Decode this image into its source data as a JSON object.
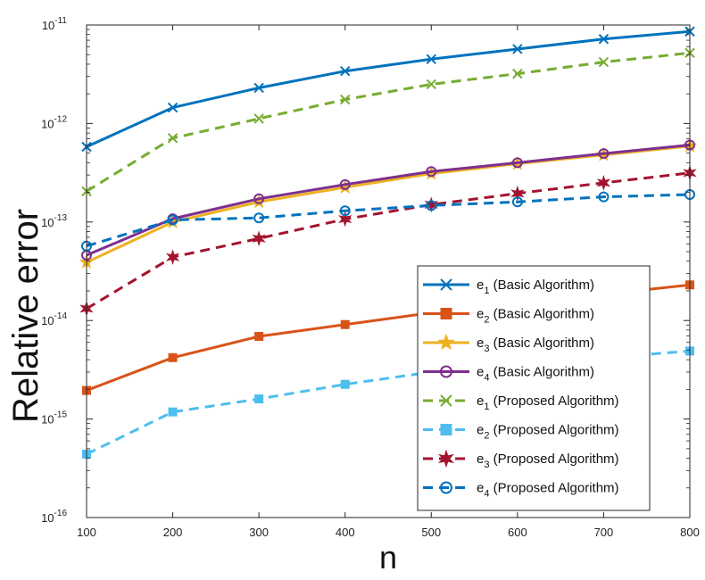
{
  "chart_data": {
    "type": "line",
    "xlabel": "n",
    "ylabel": "Relative error",
    "xlim": [
      100,
      800
    ],
    "ylim": [
      1e-16,
      1e-11
    ],
    "yscale": "log",
    "x": [
      100,
      200,
      300,
      400,
      500,
      600,
      700,
      800
    ],
    "x_ticks": [
      "100",
      "200",
      "300",
      "400",
      "500",
      "600",
      "700",
      "800"
    ],
    "y_ticks": [
      {
        "value": 1e-11,
        "base": "10",
        "exp": "-11"
      },
      {
        "value": 1e-12,
        "base": "10",
        "exp": "-12"
      },
      {
        "value": 1e-13,
        "base": "10",
        "exp": "-13"
      },
      {
        "value": 1e-14,
        "base": "10",
        "exp": "-14"
      },
      {
        "value": 1e-15,
        "base": "10",
        "exp": "-15"
      },
      {
        "value": 1e-16,
        "base": "10",
        "exp": "-16"
      }
    ],
    "grid": false,
    "legend_position": "bottom-right",
    "series": [
      {
        "name_main": "e",
        "name_sub": "1",
        "name_rest": " (Basic Algorithm)",
        "color": "#0072BD",
        "style": "solid",
        "marker": "x",
        "values": [
          5.8e-13,
          1.45e-12,
          2.3e-12,
          3.4e-12,
          4.5e-12,
          5.7e-12,
          7.2e-12,
          8.6e-12
        ]
      },
      {
        "name_main": "e",
        "name_sub": "2",
        "name_rest": " (Basic Algorithm)",
        "color": "#D95319",
        "style": "solid",
        "marker": "square",
        "values": [
          1.95e-15,
          4.2e-15,
          6.9e-15,
          9.1e-15,
          1.2e-14,
          1.5e-14,
          1.85e-14,
          2.3e-14
        ]
      },
      {
        "name_main": "e",
        "name_sub": "3",
        "name_rest": " (Basic Algorithm)",
        "color": "#EDB120",
        "style": "solid",
        "marker": "star",
        "values": [
          3.9e-14,
          1e-13,
          1.6e-13,
          2.25e-13,
          3.1e-13,
          3.9e-13,
          4.8e-13,
          5.9e-13
        ]
      },
      {
        "name_main": "e",
        "name_sub": "4",
        "name_rest": " (Basic Algorithm)",
        "color": "#7E2F8E",
        "style": "solid",
        "marker": "circle",
        "values": [
          4.6e-14,
          1.08e-13,
          1.72e-13,
          2.4e-13,
          3.25e-13,
          4e-13,
          4.95e-13,
          6.05e-13
        ]
      },
      {
        "name_main": "e",
        "name_sub": "1",
        "name_rest": " (Proposed Algorithm)",
        "color": "#77AC30",
        "style": "dashed",
        "marker": "x",
        "values": [
          2.05e-13,
          7.1e-13,
          1.12e-12,
          1.75e-12,
          2.5e-12,
          3.2e-12,
          4.2e-12,
          5.2e-12
        ]
      },
      {
        "name_main": "e",
        "name_sub": "2",
        "name_rest": " (Proposed Algorithm)",
        "color": "#4DBEEE",
        "style": "dashed",
        "marker": "square",
        "values": [
          4.4e-16,
          1.18e-15,
          1.6e-15,
          2.25e-15,
          3e-15,
          3.6e-15,
          4.2e-15,
          4.9e-15
        ]
      },
      {
        "name_main": "e",
        "name_sub": "3",
        "name_rest": " (Proposed Algorithm)",
        "color": "#A2142F",
        "style": "dashed",
        "marker": "hexagram",
        "values": [
          1.32e-14,
          4.4e-14,
          6.8e-14,
          1.07e-13,
          1.5e-13,
          1.95e-13,
          2.5e-13,
          3.15e-13
        ]
      },
      {
        "name_main": "e",
        "name_sub": "4",
        "name_rest": " (Proposed Algorithm)",
        "color": "#0072BD",
        "style": "dashed",
        "marker": "circle",
        "values": [
          5.7e-14,
          1.05e-13,
          1.1e-13,
          1.3e-13,
          1.47e-13,
          1.6e-13,
          1.8e-13,
          1.9e-13
        ]
      }
    ]
  }
}
